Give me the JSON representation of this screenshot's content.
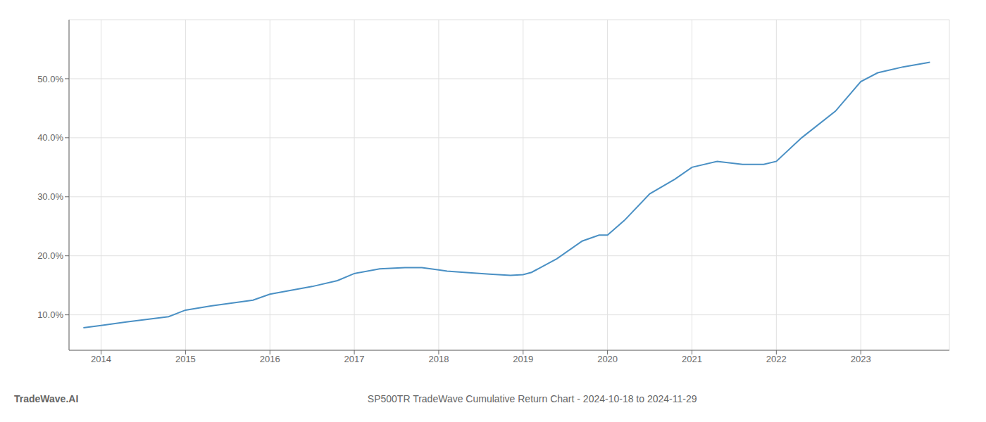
{
  "chart_data": {
    "type": "line",
    "title": "SP500TR TradeWave Cumulative Return Chart - 2024-10-18 to 2024-11-29",
    "annotations": [
      "TradeWave.AI"
    ],
    "x": [
      2013.79,
      2014.0,
      2014.3,
      2014.8,
      2015.0,
      2015.3,
      2015.8,
      2016.0,
      2016.5,
      2016.8,
      2017.0,
      2017.3,
      2017.6,
      2017.8,
      2018.0,
      2018.1,
      2018.3,
      2018.6,
      2018.85,
      2019.0,
      2019.1,
      2019.4,
      2019.7,
      2019.9,
      2020.0,
      2020.2,
      2020.5,
      2020.8,
      2021.0,
      2021.3,
      2021.6,
      2021.85,
      2022.0,
      2022.3,
      2022.7,
      2023.0,
      2023.2,
      2023.5,
      2023.82
    ],
    "values": [
      7.8,
      8.2,
      8.8,
      9.7,
      10.8,
      11.5,
      12.5,
      13.5,
      14.8,
      15.8,
      17.0,
      17.8,
      18.0,
      18.0,
      17.6,
      17.4,
      17.2,
      16.9,
      16.7,
      16.8,
      17.2,
      19.5,
      22.5,
      23.5,
      23.5,
      26.0,
      30.5,
      33.0,
      35.0,
      36.0,
      35.5,
      35.5,
      36.0,
      40.0,
      44.5,
      49.5,
      51.0,
      52.0,
      52.8
    ],
    "color": "#4a90c4",
    "xlim": [
      2013.62,
      2024.05
    ],
    "xticks": [
      2014,
      2015,
      2016,
      2017,
      2018,
      2019,
      2020,
      2021,
      2022,
      2023
    ],
    "ylim": [
      4.0,
      60.0
    ],
    "yticks": [
      {
        "value": 10.0,
        "label": "10.0%"
      },
      {
        "value": 20.0,
        "label": "20.0%"
      },
      {
        "value": 30.0,
        "label": "30.0%"
      },
      {
        "value": 40.0,
        "label": "40.0%"
      },
      {
        "value": 50.0,
        "label": "50.0%"
      }
    ],
    "grid": true
  }
}
